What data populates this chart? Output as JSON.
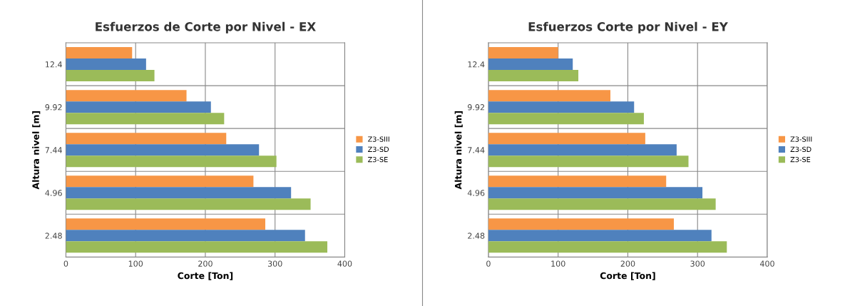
{
  "chart_data": [
    {
      "type": "bar",
      "orientation": "horizontal",
      "title": "Esfuerzos de Corte por Nivel - EX",
      "xlabel": "Corte [Ton]",
      "ylabel": "Altura nivel [m]",
      "categories": [
        "12.4",
        "9.92",
        "7.44",
        "4.96",
        "2.48"
      ],
      "series": [
        {
          "name": "Z3-SIII",
          "color": "#f79646",
          "values": [
            95,
            173,
            230,
            269,
            286
          ]
        },
        {
          "name": "Z3-SD",
          "color": "#4f81bd",
          "values": [
            115,
            208,
            277,
            323,
            343
          ]
        },
        {
          "name": "Z3-SE",
          "color": "#9bbb59",
          "values": [
            127,
            227,
            302,
            351,
            375
          ]
        }
      ],
      "xlim": [
        0,
        400
      ],
      "xticks": [
        0,
        100,
        200,
        300,
        400
      ],
      "grid": true,
      "legend": "right"
    },
    {
      "type": "bar",
      "orientation": "horizontal",
      "title": "Esfuerzos Corte por Nivel - EY",
      "xlabel": "Corte [Ton]",
      "ylabel": "Altura nivel [m]",
      "categories": [
        "12.4",
        "9.92",
        "7.44",
        "4.96",
        "2.48"
      ],
      "series": [
        {
          "name": "Z3-SIII",
          "color": "#f79646",
          "values": [
            100,
            175,
            225,
            255,
            266
          ]
        },
        {
          "name": "Z3-SD",
          "color": "#4f81bd",
          "values": [
            121,
            209,
            270,
            307,
            320
          ]
        },
        {
          "name": "Z3-SE",
          "color": "#9bbb59",
          "values": [
            129,
            223,
            287,
            326,
            342
          ]
        }
      ],
      "xlim": [
        0,
        400
      ],
      "xticks": [
        0,
        100,
        200,
        300,
        400
      ],
      "grid": true,
      "legend": "right"
    }
  ]
}
